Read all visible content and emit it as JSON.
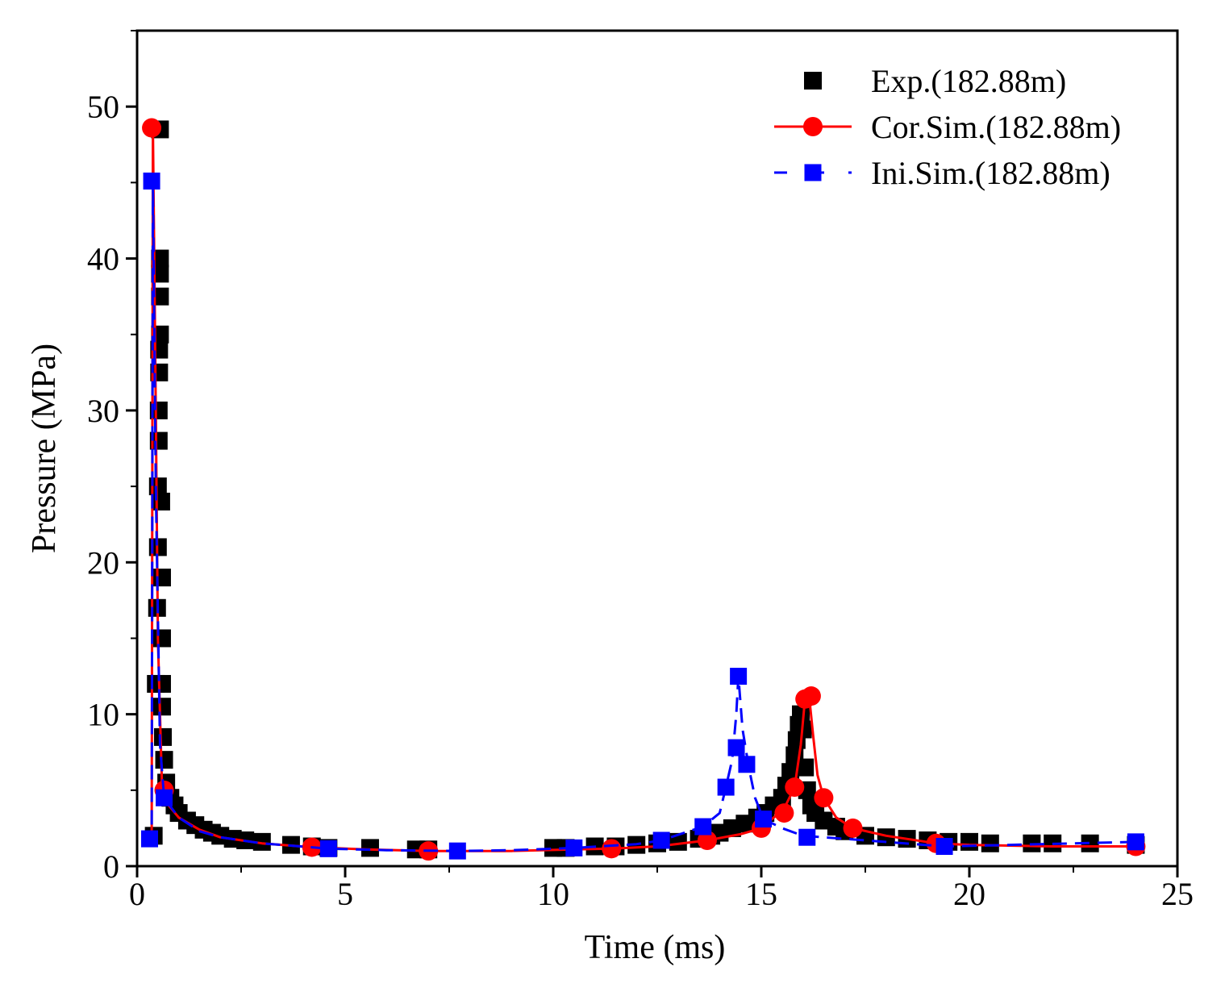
{
  "chart_data": {
    "type": "scatter",
    "xlabel": "Time (ms)",
    "ylabel": "Pressure (MPa)",
    "xlim": [
      0,
      25
    ],
    "ylim": [
      0,
      55
    ],
    "xticks": [
      0,
      5,
      10,
      15,
      20,
      25
    ],
    "xtick_labels": [
      "0",
      "5",
      "10",
      "15",
      "20",
      "25"
    ],
    "yticks": [
      0,
      10,
      20,
      30,
      40,
      50
    ],
    "ytick_labels": [
      "0",
      "10",
      "20",
      "30",
      "40",
      "50"
    ],
    "grid": false,
    "legend_position": "top-right",
    "series": [
      {
        "name": "Exp.(182.88m)",
        "style": "square-markers",
        "color": "#000000",
        "points": [
          [
            0.4,
            2.0
          ],
          [
            0.45,
            12.0
          ],
          [
            0.48,
            17.0
          ],
          [
            0.5,
            21.0
          ],
          [
            0.5,
            25.0
          ],
          [
            0.52,
            28.0
          ],
          [
            0.52,
            30.0
          ],
          [
            0.53,
            32.5
          ],
          [
            0.53,
            34.0
          ],
          [
            0.55,
            35.0
          ],
          [
            0.55,
            37.5
          ],
          [
            0.55,
            39.0
          ],
          [
            0.55,
            40.0
          ],
          [
            0.55,
            48.5
          ],
          [
            0.58,
            24.0
          ],
          [
            0.6,
            19.0
          ],
          [
            0.6,
            15.0
          ],
          [
            0.6,
            12.0
          ],
          [
            0.6,
            10.5
          ],
          [
            0.62,
            8.5
          ],
          [
            0.65,
            7.0
          ],
          [
            0.7,
            5.5
          ],
          [
            0.8,
            4.5
          ],
          [
            0.9,
            4.0
          ],
          [
            1.0,
            3.5
          ],
          [
            1.2,
            3.0
          ],
          [
            1.4,
            2.7
          ],
          [
            1.6,
            2.4
          ],
          [
            1.8,
            2.2
          ],
          [
            2.0,
            2.0
          ],
          [
            2.3,
            1.8
          ],
          [
            2.6,
            1.7
          ],
          [
            3.0,
            1.6
          ],
          [
            3.7,
            1.4
          ],
          [
            4.2,
            1.3
          ],
          [
            4.6,
            1.2
          ],
          [
            5.6,
            1.2
          ],
          [
            6.7,
            1.1
          ],
          [
            7.0,
            1.1
          ],
          [
            10.0,
            1.2
          ],
          [
            10.3,
            1.2
          ],
          [
            11.0,
            1.3
          ],
          [
            11.5,
            1.3
          ],
          [
            12.0,
            1.4
          ],
          [
            12.5,
            1.5
          ],
          [
            13.0,
            1.6
          ],
          [
            13.5,
            1.8
          ],
          [
            13.8,
            2.0
          ],
          [
            14.0,
            2.2
          ],
          [
            14.3,
            2.5
          ],
          [
            14.6,
            2.8
          ],
          [
            14.9,
            3.2
          ],
          [
            15.1,
            3.5
          ],
          [
            15.3,
            4.0
          ],
          [
            15.5,
            4.5
          ],
          [
            15.6,
            5.3
          ],
          [
            15.7,
            6.2
          ],
          [
            15.8,
            7.3
          ],
          [
            15.85,
            8.3
          ],
          [
            15.9,
            9.3
          ],
          [
            15.95,
            10.0
          ],
          [
            16.0,
            9.0
          ],
          [
            16.05,
            6.5
          ],
          [
            16.1,
            5.0
          ],
          [
            16.2,
            4.0
          ],
          [
            16.3,
            3.5
          ],
          [
            16.5,
            3.0
          ],
          [
            16.8,
            2.6
          ],
          [
            17.0,
            2.3
          ],
          [
            17.5,
            2.0
          ],
          [
            18.0,
            1.9
          ],
          [
            18.5,
            1.8
          ],
          [
            19.0,
            1.7
          ],
          [
            19.5,
            1.6
          ],
          [
            20.0,
            1.6
          ],
          [
            20.5,
            1.5
          ],
          [
            21.5,
            1.5
          ],
          [
            22.0,
            1.5
          ],
          [
            22.9,
            1.5
          ],
          [
            24.0,
            1.4
          ]
        ]
      },
      {
        "name": "Cor.Sim.(182.88m)",
        "style": "solid-line-circles",
        "color": "#ff0000",
        "line": [
          [
            0.2,
            1.8
          ],
          [
            0.35,
            1.8
          ],
          [
            0.38,
            48.6
          ],
          [
            0.45,
            30.0
          ],
          [
            0.5,
            15.0
          ],
          [
            0.6,
            5.0
          ],
          [
            0.7,
            4.2
          ],
          [
            1.0,
            3.2
          ],
          [
            1.5,
            2.4
          ],
          [
            2.0,
            1.9
          ],
          [
            3.0,
            1.5
          ],
          [
            4.2,
            1.25
          ],
          [
            5.5,
            1.1
          ],
          [
            7.0,
            1.0
          ],
          [
            9.0,
            1.0
          ],
          [
            10.5,
            1.1
          ],
          [
            11.4,
            1.15
          ],
          [
            12.5,
            1.3
          ],
          [
            13.7,
            1.7
          ],
          [
            14.5,
            2.1
          ],
          [
            15.0,
            2.5
          ],
          [
            15.3,
            3.2
          ],
          [
            15.55,
            3.8
          ],
          [
            15.8,
            5.2
          ],
          [
            15.95,
            8.0
          ],
          [
            16.05,
            11.0
          ],
          [
            16.15,
            11.2
          ],
          [
            16.25,
            8.5
          ],
          [
            16.35,
            6.0
          ],
          [
            16.5,
            4.5
          ],
          [
            16.8,
            3.2
          ],
          [
            17.2,
            2.5
          ],
          [
            18.0,
            2.0
          ],
          [
            19.2,
            1.5
          ],
          [
            20.0,
            1.4
          ],
          [
            22.0,
            1.3
          ],
          [
            24.0,
            1.3
          ]
        ],
        "markers": [
          [
            0.35,
            48.6
          ],
          [
            0.65,
            5.0
          ],
          [
            4.2,
            1.25
          ],
          [
            7.0,
            1.0
          ],
          [
            11.4,
            1.15
          ],
          [
            13.7,
            1.7
          ],
          [
            15.0,
            2.5
          ],
          [
            15.55,
            3.5
          ],
          [
            15.8,
            5.2
          ],
          [
            16.05,
            11.0
          ],
          [
            16.2,
            11.2
          ],
          [
            16.5,
            4.5
          ],
          [
            17.2,
            2.5
          ],
          [
            19.2,
            1.5
          ],
          [
            24.0,
            1.3
          ]
        ]
      },
      {
        "name": "Ini.Sim.(182.88m)",
        "style": "dashed-line-squares",
        "color": "#0000ff",
        "line": [
          [
            0.15,
            1.8
          ],
          [
            0.35,
            1.8
          ],
          [
            0.38,
            45.1
          ],
          [
            0.45,
            25.0
          ],
          [
            0.55,
            8.0
          ],
          [
            0.65,
            4.5
          ],
          [
            1.0,
            3.2
          ],
          [
            1.5,
            2.3
          ],
          [
            2.0,
            1.9
          ],
          [
            3.0,
            1.5
          ],
          [
            4.6,
            1.15
          ],
          [
            6.0,
            1.05
          ],
          [
            7.7,
            1.0
          ],
          [
            9.0,
            1.05
          ],
          [
            10.5,
            1.2
          ],
          [
            12.0,
            1.45
          ],
          [
            12.6,
            1.7
          ],
          [
            13.6,
            2.6
          ],
          [
            14.0,
            3.5
          ],
          [
            14.15,
            5.2
          ],
          [
            14.3,
            7.0
          ],
          [
            14.4,
            10.0
          ],
          [
            14.45,
            12.5
          ],
          [
            14.55,
            9.0
          ],
          [
            14.7,
            6.5
          ],
          [
            14.85,
            4.5
          ],
          [
            15.05,
            3.1
          ],
          [
            15.5,
            2.5
          ],
          [
            16.0,
            2.0
          ],
          [
            16.5,
            1.9
          ],
          [
            17.5,
            1.7
          ],
          [
            19.4,
            1.3
          ],
          [
            21.0,
            1.4
          ],
          [
            24.0,
            1.6
          ]
        ],
        "markers": [
          [
            0.3,
            1.8
          ],
          [
            0.35,
            45.1
          ],
          [
            0.65,
            4.5
          ],
          [
            4.6,
            1.15
          ],
          [
            7.7,
            1.0
          ],
          [
            10.5,
            1.2
          ],
          [
            12.6,
            1.7
          ],
          [
            13.6,
            2.6
          ],
          [
            14.15,
            5.2
          ],
          [
            14.4,
            7.8
          ],
          [
            14.45,
            12.5
          ],
          [
            14.65,
            6.7
          ],
          [
            15.05,
            3.1
          ],
          [
            16.1,
            1.9
          ],
          [
            19.4,
            1.3
          ],
          [
            24.0,
            1.6
          ]
        ]
      }
    ]
  }
}
